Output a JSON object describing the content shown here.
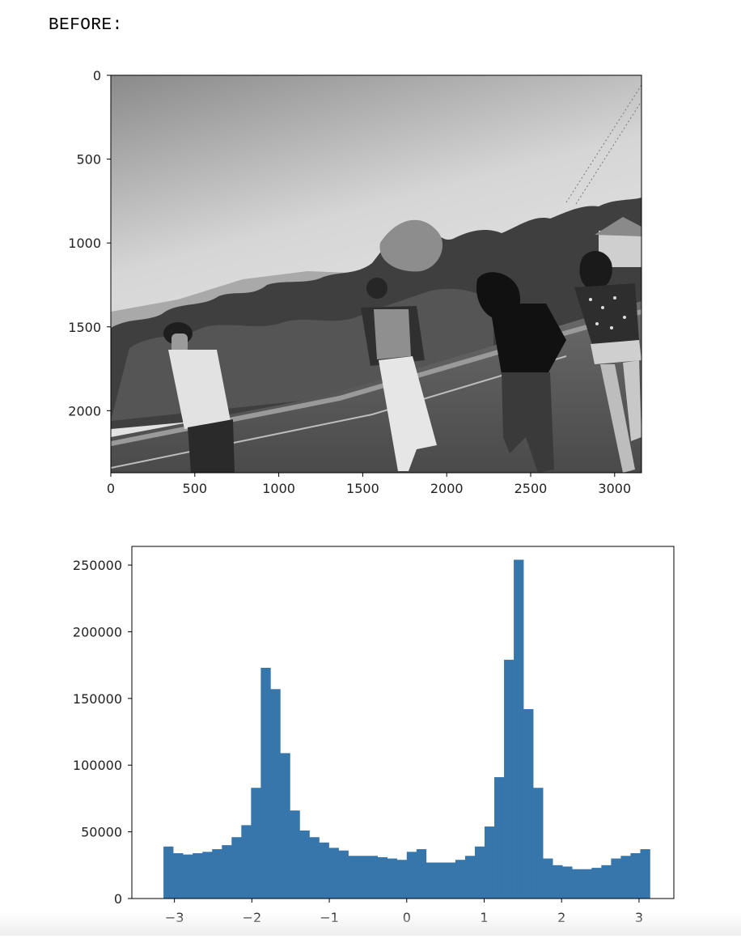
{
  "cell_output": {
    "label": "BEFORE:"
  },
  "chart_data": [
    {
      "type": "image",
      "xlim": [
        0,
        3160
      ],
      "ylim": [
        2370,
        0
      ],
      "xticks": [
        0,
        500,
        1000,
        1500,
        2000,
        2500,
        3000
      ],
      "yticks": [
        0,
        500,
        1000,
        1500,
        2000
      ],
      "xtick_labels": [
        "0",
        "500",
        "1000",
        "1500",
        "2000",
        "2500",
        "3000"
      ],
      "ytick_labels": [
        "0",
        "500",
        "1000",
        "1500",
        "2000"
      ],
      "colormap": "gray"
    },
    {
      "type": "bar",
      "kind": "histogram",
      "bar_color": "#3776ab",
      "xlim": [
        -3.55,
        3.45
      ],
      "ylim": [
        0,
        264000
      ],
      "xticks": [
        -3,
        -2,
        -1,
        0,
        1,
        2,
        3
      ],
      "yticks": [
        0,
        50000,
        100000,
        150000,
        200000,
        250000
      ],
      "xtick_labels": [
        "−3",
        "−2",
        "−1",
        "0",
        "1",
        "2",
        "3"
      ],
      "ytick_labels": [
        "0",
        "50000",
        "100000",
        "150000",
        "200000",
        "250000"
      ],
      "bin_range": [
        -3.14159,
        3.14159
      ],
      "values": [
        39000,
        34000,
        33000,
        34000,
        35000,
        37000,
        40000,
        46000,
        55000,
        83000,
        173000,
        157000,
        109000,
        66000,
        51000,
        46000,
        42000,
        38000,
        36000,
        32000,
        32000,
        32000,
        31000,
        30000,
        29000,
        35000,
        37000,
        27000,
        27000,
        27000,
        29000,
        32000,
        39000,
        54000,
        91000,
        179000,
        254000,
        142000,
        83000,
        30000,
        25000,
        24000,
        22000,
        22000,
        23000,
        25000,
        30000,
        32000,
        34000,
        37000
      ]
    }
  ]
}
